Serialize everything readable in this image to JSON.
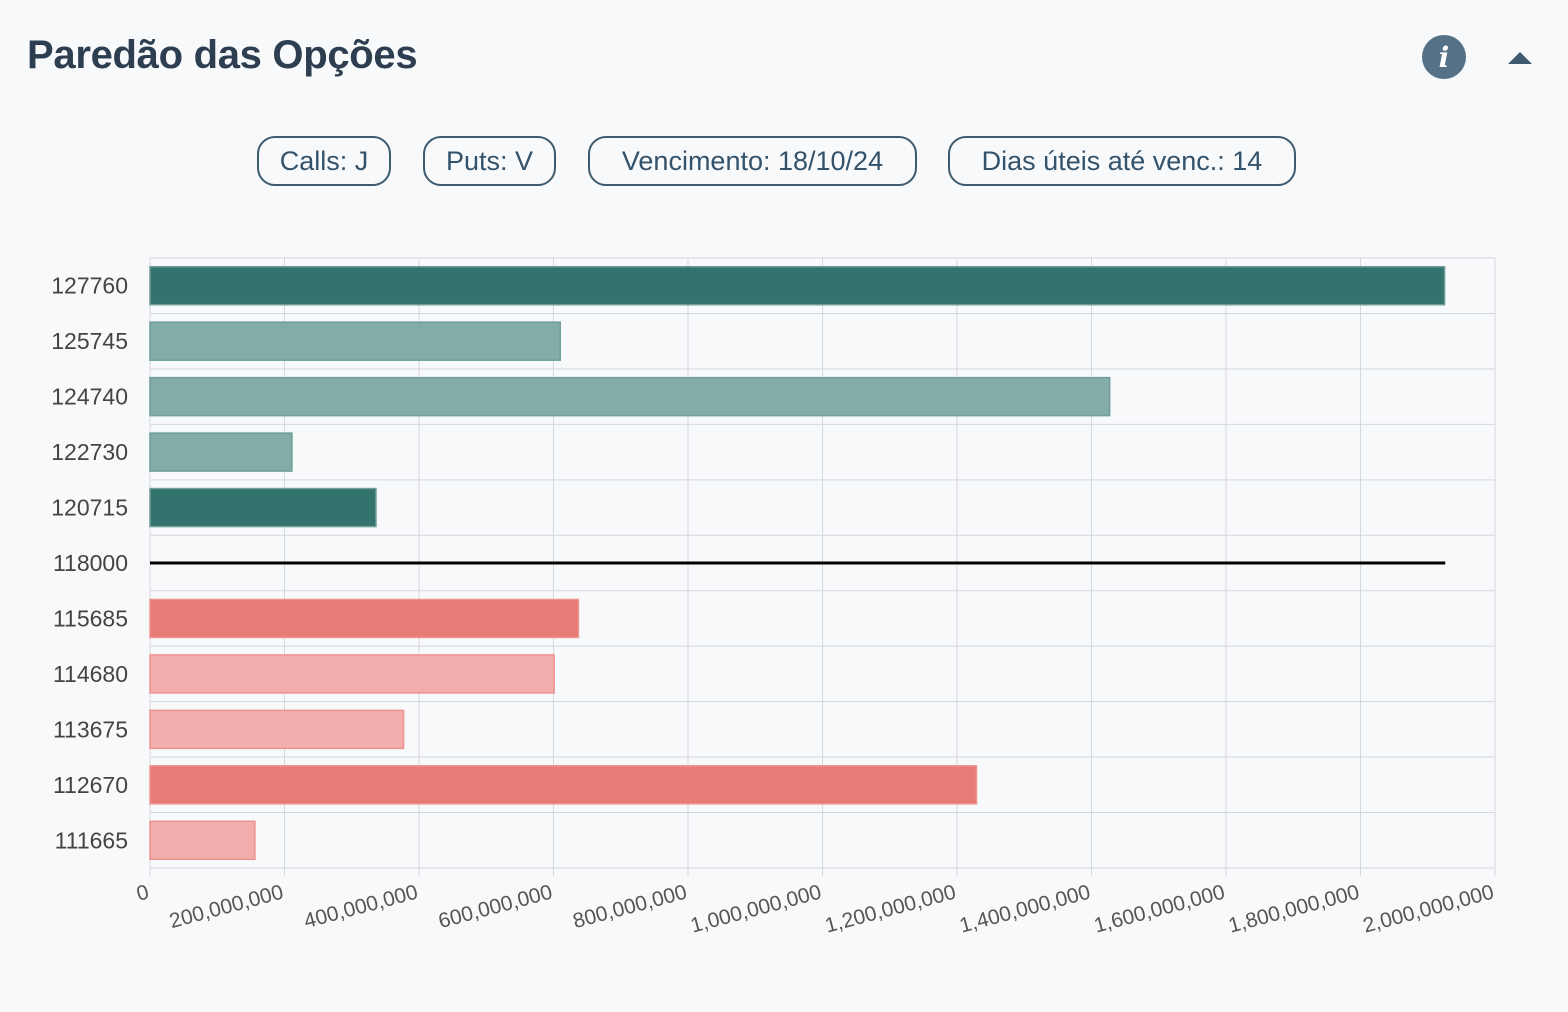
{
  "header": {
    "title": "Paredão das Opções",
    "info_icon": "info-icon",
    "info_glyph": "i",
    "collapse_icon": "caret-up-icon"
  },
  "pills": [
    {
      "label": "Calls: J"
    },
    {
      "label": "Puts: V"
    },
    {
      "label": "Vencimento: 18/10/24"
    },
    {
      "label": "Dias úteis até venc.: 14"
    }
  ],
  "colors": {
    "call_strong": "#33736e",
    "call_light": "#84aca7",
    "put_strong": "#e87a77",
    "put_light": "#f1aeac",
    "spot_line": "#000000",
    "grid": "#d5d8db"
  },
  "chart_data": {
    "type": "bar",
    "orientation": "horizontal",
    "categories": [
      "127760",
      "125745",
      "124740",
      "122730",
      "120715",
      "118000",
      "115685",
      "114680",
      "113675",
      "112670",
      "111665"
    ],
    "values": [
      1925000000,
      610000000,
      1427000000,
      211000000,
      336000000,
      null,
      637000000,
      601000000,
      377000000,
      1229000000,
      156000000
    ],
    "series_type": [
      "call",
      "call",
      "call",
      "call",
      "call",
      "spot",
      "put",
      "put",
      "put",
      "put",
      "put"
    ],
    "emphasis": [
      "strong",
      "light",
      "light",
      "light",
      "strong",
      "none",
      "strong",
      "light",
      "light",
      "strong",
      "light"
    ],
    "spot_level": "118000",
    "xlim": [
      0,
      2000000000
    ],
    "xticks": [
      "0",
      "200,000,000",
      "400,000,000",
      "600,000,000",
      "800,000,000",
      "1,000,000,000",
      "1,200,000,000",
      "1,400,000,000",
      "1,600,000,000",
      "1,800,000,000",
      "2,000,000,000"
    ],
    "grid": true,
    "title": "",
    "xlabel": "",
    "ylabel": ""
  }
}
